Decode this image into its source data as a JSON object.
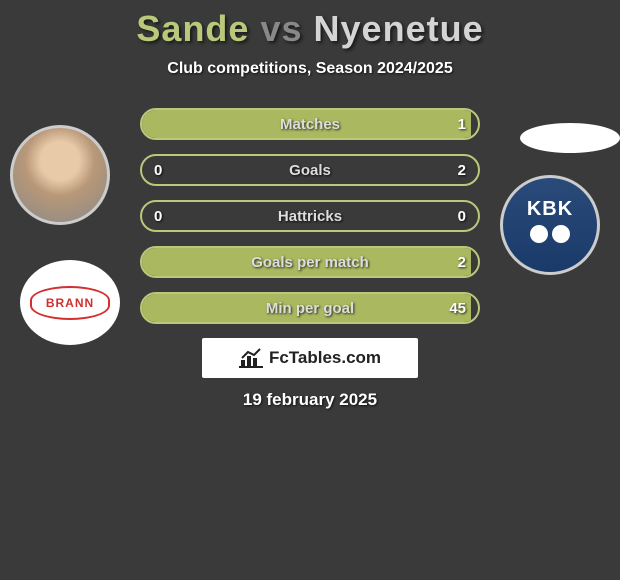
{
  "title": {
    "player1": "Sande",
    "vs": "vs",
    "player2": "Nyenetue"
  },
  "subtitle": "Club competitions, Season 2024/2025",
  "club_left_text": "BRANN",
  "club_right_text": "KBK",
  "bars": [
    {
      "label": "Matches",
      "left": "",
      "right": "1",
      "left_pct": 98,
      "right_pct": 0
    },
    {
      "label": "Goals",
      "left": "0",
      "right": "2",
      "left_pct": 0,
      "right_pct": 0
    },
    {
      "label": "Hattricks",
      "left": "0",
      "right": "0",
      "left_pct": 0,
      "right_pct": 0
    },
    {
      "label": "Goals per match",
      "left": "",
      "right": "2",
      "left_pct": 98,
      "right_pct": 0
    },
    {
      "label": "Min per goal",
      "left": "",
      "right": "45",
      "left_pct": 98,
      "right_pct": 0
    }
  ],
  "colors": {
    "bar_border": "#b8c97a",
    "bar_fill": "#aab860",
    "background": "#3a3a3a",
    "title_p1": "#b8c97a",
    "title_vs": "#888888",
    "title_p2": "#d4d4d4",
    "club_left_accent": "#d32f2f",
    "club_right_bg_top": "#2a4a7a",
    "club_right_bg_bottom": "#1a3a6a"
  },
  "watermark": "FcTables.com",
  "date": "19 february 2025"
}
